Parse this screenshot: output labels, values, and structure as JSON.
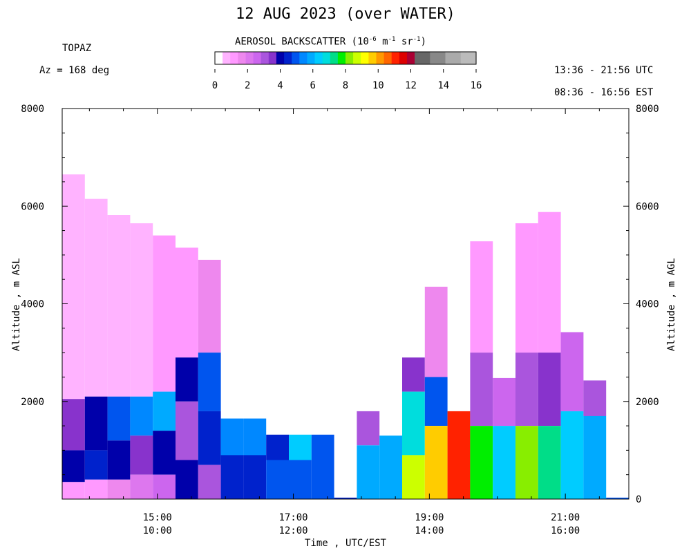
{
  "header": {
    "title": "12 AUG 2023 (over WATER)",
    "station": "TOPAZ",
    "azimuth": "Az = 168 deg",
    "utc_range": "13:36 - 21:56 UTC",
    "est_range": "08:36 - 16:56 EST"
  },
  "colorbar": {
    "title_prefix": "AEROSOL BACKSCATTER (10",
    "exp1": "-6",
    "mid1": " m",
    "exp2": "-1",
    "mid2": " sr",
    "exp3": "-1",
    "suffix": ")",
    "tick_labels": [
      "0",
      "2",
      "4",
      "6",
      "8",
      "10",
      "12",
      "14",
      "16"
    ],
    "colors": [
      "#ffffff",
      "#ffb3ff",
      "#ff99ff",
      "#ee88ee",
      "#dd77ee",
      "#cc66ee",
      "#aa55dd",
      "#8833cc",
      "#0000aa",
      "#0022cc",
      "#0055ee",
      "#0088ff",
      "#00aaff",
      "#00ccff",
      "#00dddd",
      "#00dd88",
      "#00ee00",
      "#88ee00",
      "#ccff00",
      "#ffff00",
      "#ffcc00",
      "#ff9900",
      "#ff6600",
      "#ff2200",
      "#dd0000",
      "#aa0033",
      "#666666",
      "#666666",
      "#888888",
      "#888888",
      "#aaaaaa",
      "#aaaaaa",
      "#bbbbbb",
      "#bbbbbb"
    ]
  },
  "axes": {
    "ylabel_left": "Altitude , m ASL",
    "ylabel_right": "Altitude , m AGL",
    "xlabel": "Time , UTC/EST"
  },
  "chart_data": {
    "type": "heatmap",
    "title": "12 AUG 2023 (over WATER)",
    "xlabel": "Time , UTC/EST",
    "ylabel": "Altitude , m ASL",
    "ylabel_right": "Altitude , m AGL",
    "xlim": [
      "13:36",
      "21:56"
    ],
    "ylim": [
      0,
      8000
    ],
    "y_ticks_left": [
      "2000",
      "4000",
      "6000",
      "8000"
    ],
    "y_ticks_right": [
      "0",
      "2000",
      "4000",
      "6000",
      "8000"
    ],
    "x_ticks": [
      {
        "utc": "15:00",
        "est": "10:00"
      },
      {
        "utc": "17:00",
        "est": "12:00"
      },
      {
        "utc": "19:00",
        "est": "14:00"
      },
      {
        "utc": "21:00",
        "est": "16:00"
      }
    ],
    "colorbar_range": [
      0,
      16
    ],
    "colorbar_units": "10^-6 m^-1 sr^-1",
    "profiles": [
      {
        "start": "13:36",
        "end": "13:56",
        "top": 6650,
        "layers": [
          {
            "from": 2050,
            "to": 6650,
            "level": 1
          },
          {
            "from": 1000,
            "to": 2050,
            "level": 7
          },
          {
            "from": 350,
            "to": 1000,
            "level": 8
          },
          {
            "from": 0,
            "to": 350,
            "level": 2
          }
        ]
      },
      {
        "start": "13:56",
        "end": "14:16",
        "top": 6150,
        "layers": [
          {
            "from": 2100,
            "to": 6150,
            "level": 1
          },
          {
            "from": 1000,
            "to": 2100,
            "level": 8
          },
          {
            "from": 400,
            "to": 1000,
            "level": 9
          },
          {
            "from": 0,
            "to": 400,
            "level": 2
          }
        ]
      },
      {
        "start": "14:16",
        "end": "14:36",
        "top": 5820,
        "layers": [
          {
            "from": 2100,
            "to": 5820,
            "level": 1
          },
          {
            "from": 1200,
            "to": 2100,
            "level": 10
          },
          {
            "from": 400,
            "to": 1200,
            "level": 8
          },
          {
            "from": 0,
            "to": 400,
            "level": 3
          }
        ]
      },
      {
        "start": "14:36",
        "end": "14:56",
        "top": 5650,
        "layers": [
          {
            "from": 2100,
            "to": 5650,
            "level": 1
          },
          {
            "from": 1300,
            "to": 2100,
            "level": 11
          },
          {
            "from": 500,
            "to": 1300,
            "level": 7
          },
          {
            "from": 0,
            "to": 500,
            "level": 4
          }
        ]
      },
      {
        "start": "14:56",
        "end": "15:16",
        "top": 5400,
        "layers": [
          {
            "from": 2200,
            "to": 5400,
            "level": 2
          },
          {
            "from": 1400,
            "to": 2200,
            "level": 12
          },
          {
            "from": 500,
            "to": 1400,
            "level": 8
          },
          {
            "from": 0,
            "to": 500,
            "level": 5
          }
        ]
      },
      {
        "start": "15:16",
        "end": "15:36",
        "top": 5150,
        "layers": [
          {
            "from": 2900,
            "to": 5150,
            "level": 2
          },
          {
            "from": 2000,
            "to": 2900,
            "level": 8
          },
          {
            "from": 800,
            "to": 2000,
            "level": 6
          },
          {
            "from": 0,
            "to": 800,
            "level": 8
          }
        ]
      },
      {
        "start": "15:36",
        "end": "15:56",
        "top": 4900,
        "layers": [
          {
            "from": 3000,
            "to": 4900,
            "level": 3
          },
          {
            "from": 1800,
            "to": 3000,
            "level": 10
          },
          {
            "from": 700,
            "to": 1800,
            "level": 9
          },
          {
            "from": 0,
            "to": 700,
            "level": 6
          }
        ]
      },
      {
        "start": "15:56",
        "end": "16:16",
        "top": 1650,
        "layers": [
          {
            "from": 900,
            "to": 1650,
            "level": 11
          },
          {
            "from": 0,
            "to": 900,
            "level": 9
          }
        ]
      },
      {
        "start": "16:16",
        "end": "16:36",
        "top": 1650,
        "layers": [
          {
            "from": 900,
            "to": 1650,
            "level": 11
          },
          {
            "from": 0,
            "to": 900,
            "level": 9
          }
        ]
      },
      {
        "start": "16:36",
        "end": "16:56",
        "top": 1320,
        "layers": [
          {
            "from": 800,
            "to": 1320,
            "level": 9
          },
          {
            "from": 0,
            "to": 800,
            "level": 10
          }
        ]
      },
      {
        "start": "16:56",
        "end": "17:16",
        "top": 1320,
        "layers": [
          {
            "from": 800,
            "to": 1320,
            "level": 13
          },
          {
            "from": 0,
            "to": 800,
            "level": 10
          }
        ]
      },
      {
        "start": "17:16",
        "end": "17:36",
        "top": 1320,
        "layers": [
          {
            "from": 0,
            "to": 1320,
            "level": 10
          }
        ]
      },
      {
        "start": "17:36",
        "end": "17:56",
        "top": 30,
        "layers": [
          {
            "from": 0,
            "to": 30,
            "level": 9
          }
        ]
      },
      {
        "start": "17:56",
        "end": "18:16",
        "top": 1800,
        "layers": [
          {
            "from": 1100,
            "to": 1800,
            "level": 6
          },
          {
            "from": 0,
            "to": 1100,
            "level": 12
          }
        ]
      },
      {
        "start": "18:16",
        "end": "18:36",
        "top": 1300,
        "layers": [
          {
            "from": 0,
            "to": 1300,
            "level": 12
          }
        ]
      },
      {
        "start": "18:36",
        "end": "18:56",
        "top": 2900,
        "layers": [
          {
            "from": 2200,
            "to": 2900,
            "level": 7
          },
          {
            "from": 900,
            "to": 2200,
            "level": 14
          },
          {
            "from": 0,
            "to": 900,
            "level": 18
          }
        ]
      },
      {
        "start": "18:56",
        "end": "19:16",
        "top": 4350,
        "layers": [
          {
            "from": 2500,
            "to": 4350,
            "level": 3
          },
          {
            "from": 1500,
            "to": 2500,
            "level": 10
          },
          {
            "from": 0,
            "to": 1500,
            "level": 20
          }
        ]
      },
      {
        "start": "19:16",
        "end": "19:36",
        "top": 1800,
        "layers": [
          {
            "from": 0,
            "to": 1800,
            "level": 23
          }
        ]
      },
      {
        "start": "19:36",
        "end": "19:56",
        "top": 5280,
        "layers": [
          {
            "from": 3000,
            "to": 5280,
            "level": 2
          },
          {
            "from": 1500,
            "to": 3000,
            "level": 6
          },
          {
            "from": 0,
            "to": 1500,
            "level": 16
          }
        ]
      },
      {
        "start": "19:56",
        "end": "20:16",
        "top": 2480,
        "layers": [
          {
            "from": 1500,
            "to": 2480,
            "level": 5
          },
          {
            "from": 0,
            "to": 1500,
            "level": 13
          }
        ]
      },
      {
        "start": "20:16",
        "end": "20:36",
        "top": 5650,
        "layers": [
          {
            "from": 3000,
            "to": 5650,
            "level": 2
          },
          {
            "from": 1500,
            "to": 3000,
            "level": 6
          },
          {
            "from": 0,
            "to": 1500,
            "level": 17
          }
        ]
      },
      {
        "start": "20:36",
        "end": "20:56",
        "top": 5880,
        "layers": [
          {
            "from": 3000,
            "to": 5880,
            "level": 2
          },
          {
            "from": 1500,
            "to": 3000,
            "level": 7
          },
          {
            "from": 0,
            "to": 1500,
            "level": 15
          }
        ]
      },
      {
        "start": "20:56",
        "end": "21:16",
        "top": 3420,
        "layers": [
          {
            "from": 1800,
            "to": 3420,
            "level": 5
          },
          {
            "from": 0,
            "to": 1800,
            "level": 13
          }
        ]
      },
      {
        "start": "21:16",
        "end": "21:36",
        "top": 2430,
        "layers": [
          {
            "from": 1700,
            "to": 2430,
            "level": 6
          },
          {
            "from": 0,
            "to": 1700,
            "level": 12
          }
        ]
      },
      {
        "start": "21:36",
        "end": "21:56",
        "top": 30,
        "layers": [
          {
            "from": 0,
            "to": 30,
            "level": 10
          }
        ]
      }
    ]
  }
}
